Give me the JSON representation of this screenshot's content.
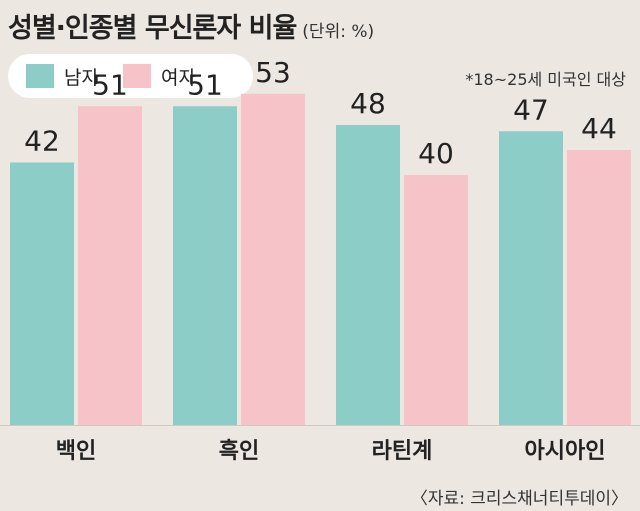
{
  "header": {
    "title": "성별·인종별 무신론자 비율",
    "unit": "(단위: %)"
  },
  "note": "*18~25세 미국인 대상",
  "source": "〈자료: 크리스채너티투데이〉",
  "colors": {
    "male": "#8ccdc8",
    "female": "#f6c3c8",
    "background": "#ece8e1"
  },
  "chart_data": {
    "type": "bar",
    "categories": [
      "백인",
      "흑인",
      "라틴계",
      "아시아인"
    ],
    "series": [
      {
        "name": "남자",
        "values": [
          42,
          51,
          48,
          47
        ]
      },
      {
        "name": "여자",
        "values": [
          51,
          53,
          40,
          44
        ]
      }
    ],
    "ylim": [
      0,
      100
    ],
    "grid": false,
    "legend": "top-left"
  }
}
